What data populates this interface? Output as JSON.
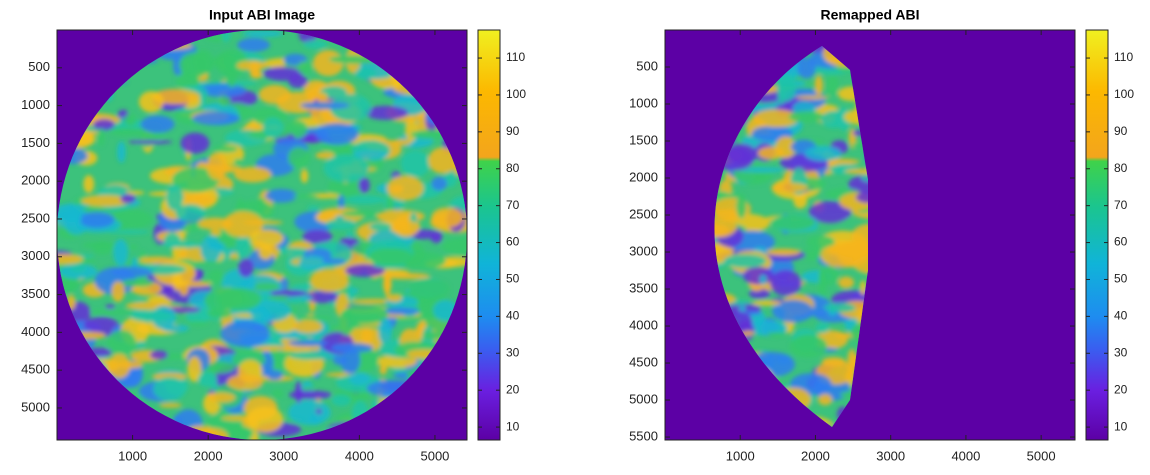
{
  "chart_data": [
    {
      "type": "image",
      "title": "Input ABI Image",
      "colormap": "parula",
      "xlim": [
        0,
        5424
      ],
      "ylim": [
        0,
        5424
      ],
      "ydir": "reverse",
      "xticks": [
        1000,
        2000,
        3000,
        4000,
        5000
      ],
      "yticks": [
        500,
        1000,
        1500,
        2000,
        2500,
        3000,
        3500,
        4000,
        4500,
        5000
      ],
      "clim": [
        6.5,
        117.6
      ],
      "cticks": [
        10,
        20,
        30,
        40,
        50,
        60,
        70,
        80,
        90,
        100,
        110
      ]
    },
    {
      "type": "image",
      "title": "Remapped ABI",
      "colormap": "parula",
      "xlim": [
        0,
        5450
      ],
      "ylim": [
        0,
        5540
      ],
      "ydir": "reverse",
      "xticks": [
        1000,
        2000,
        3000,
        4000,
        5000
      ],
      "yticks": [
        500,
        1000,
        1500,
        2000,
        2500,
        3000,
        3500,
        4000,
        4500,
        5000,
        5500
      ],
      "clim": [
        6.5,
        117.6
      ],
      "cticks": [
        10,
        20,
        30,
        40,
        50,
        60,
        70,
        80,
        90,
        100,
        110
      ]
    }
  ]
}
